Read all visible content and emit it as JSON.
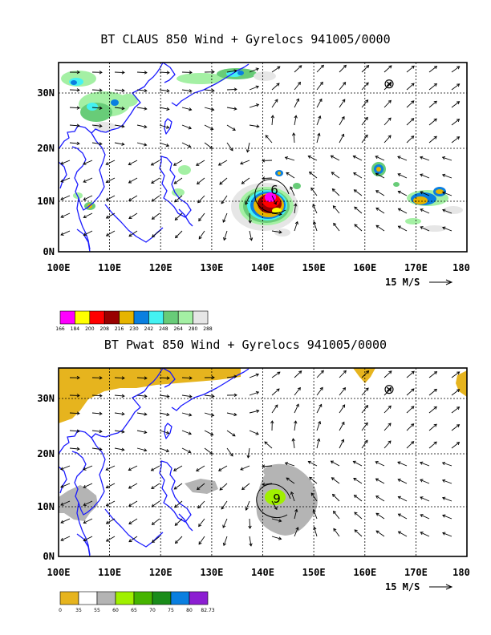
{
  "panels": [
    {
      "title": "BT CLAUS 850 Wind + Gyrelocs 941005/0000",
      "x_ticks": [
        "100E",
        "110E",
        "120E",
        "130E",
        "140E",
        "150E",
        "160E",
        "170E",
        "180"
      ],
      "y_ticks": [
        "30N",
        "20N",
        "10N",
        "0N"
      ],
      "wind_ref": "15 M/S",
      "colorbar": {
        "colors": [
          "#ff00ff",
          "#ffff00",
          "#ff0000",
          "#990000",
          "#e6b400",
          "#0a7fe0",
          "#44f2f2",
          "#68cc78",
          "#a4f0a4",
          "#e6e6e6"
        ],
        "labels": [
          "166",
          "184",
          "200",
          "208",
          "216",
          "230",
          "242",
          "248",
          "264",
          "280",
          "288"
        ]
      },
      "markers": {
        "gyre": "⊗",
        "storm_label": "6"
      }
    },
    {
      "title": "BT Pwat 850 Wind + Gyrelocs 941005/0000",
      "x_ticks": [
        "100E",
        "110E",
        "120E",
        "130E",
        "140E",
        "150E",
        "160E",
        "170E",
        "180"
      ],
      "y_ticks": [
        "30N",
        "20N",
        "10N",
        "0N"
      ],
      "wind_ref": "15 M/S",
      "colorbar": {
        "colors": [
          "#e6b41e",
          "#ffffff",
          "#b4b4b4",
          "#a0f000",
          "#46b400",
          "#1a8c1a",
          "#0a7fe0",
          "#8c1ed2"
        ],
        "labels": [
          "0",
          "35",
          "55",
          "60",
          "65",
          "70",
          "75",
          "80",
          "82.73"
        ]
      },
      "markers": {
        "gyre": "⊗",
        "storm_label": "9"
      }
    }
  ]
}
